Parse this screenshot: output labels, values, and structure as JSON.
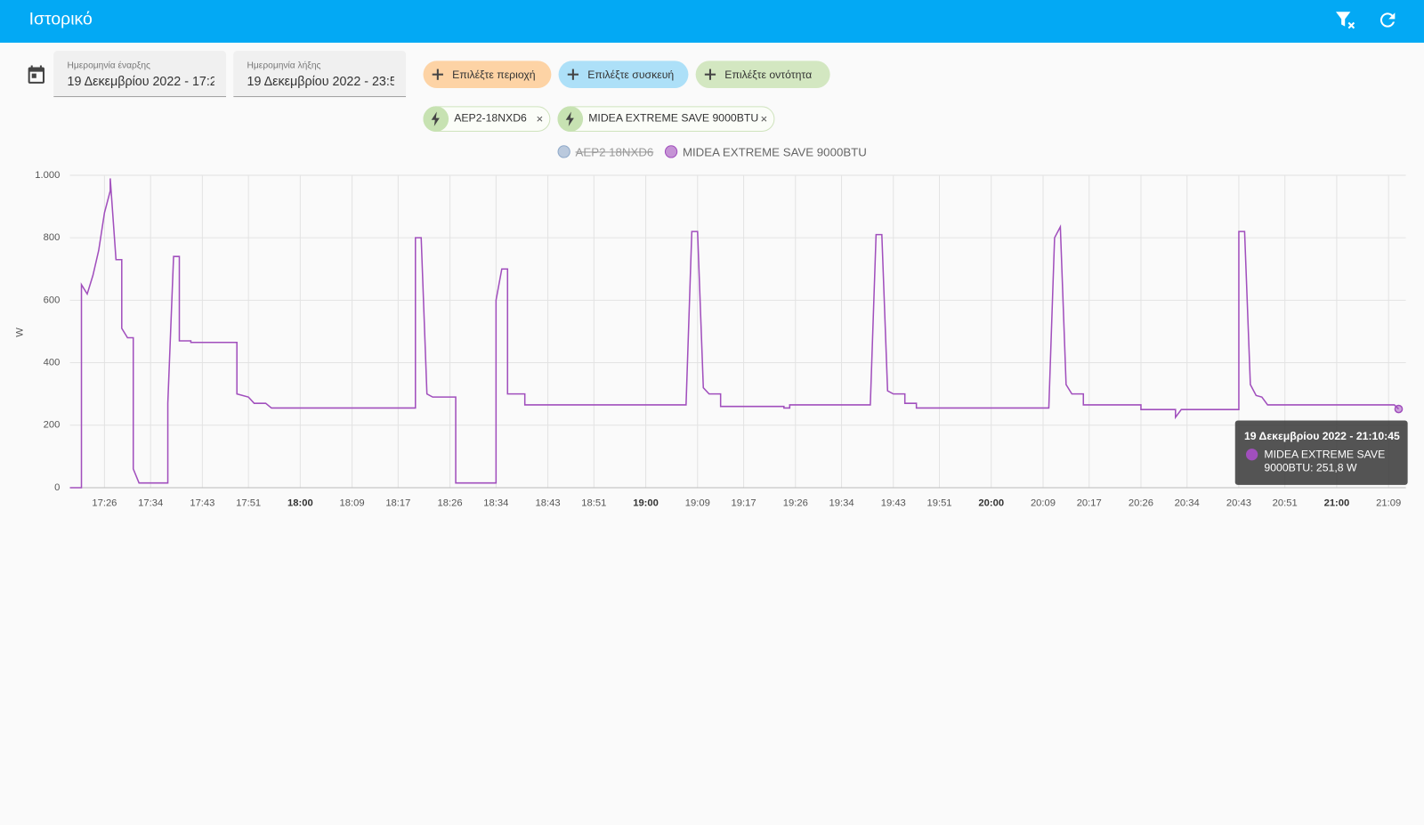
{
  "header": {
    "title": "Ιστορικό"
  },
  "filters": {
    "start": {
      "label": "Ημερομηνία έναρξης",
      "value": "19 Δεκεμβρίου 2022 - 17:2"
    },
    "end": {
      "label": "Ημερομηνία λήξης",
      "value": "19 Δεκεμβρίου 2022 - 23:5"
    },
    "buttons": [
      "Επιλέξτε περιοχή",
      "Επιλέξτε συσκευή",
      "Επιλέξτε οντότητα"
    ],
    "chips": [
      "AEP2-18NXD6",
      "MIDEA EXTREME SAVE 9000BTU"
    ]
  },
  "chart_data": {
    "type": "line",
    "y_label": "W",
    "ylim": [
      0,
      1000
    ],
    "yticks": [
      0,
      200,
      400,
      600,
      800,
      {
        "value": 1000,
        "label": "1.000"
      }
    ],
    "xlim": [
      "17:20",
      "21:12"
    ],
    "xticks": [
      "17:26",
      "17:34",
      "17:43",
      "17:51",
      "18:00",
      "18:09",
      "18:17",
      "18:26",
      "18:34",
      "18:43",
      "18:51",
      "19:00",
      "19:09",
      "19:17",
      "19:26",
      "19:34",
      "19:43",
      "19:51",
      "20:00",
      "20:09",
      "20:17",
      "20:26",
      "20:34",
      "20:43",
      "20:51",
      "21:00",
      "21:09"
    ],
    "grid": true,
    "x": [
      "17:20",
      "17:22",
      "17:22",
      "17:23",
      "17:24",
      "17:25",
      "17:26",
      "17:27",
      "17:27",
      "17:28",
      "17:29",
      "17:29",
      "17:30",
      "17:31",
      "17:31",
      "17:32",
      "17:37",
      "17:37",
      "17:38",
      "17:39",
      "17:39",
      "17:41",
      "17:41",
      "17:49",
      "17:49",
      "17:51",
      "17:52",
      "17:54",
      "17:55",
      "18:20",
      "18:20",
      "18:21",
      "18:22",
      "18:23",
      "18:27",
      "18:27",
      "18:34",
      "18:34",
      "18:35",
      "18:36",
      "18:36",
      "18:39",
      "18:39",
      "19:07",
      "19:08",
      "19:09",
      "19:10",
      "19:11",
      "19:13",
      "19:13",
      "19:24",
      "19:24",
      "19:25",
      "19:25",
      "19:39",
      "19:40",
      "19:41",
      "19:42",
      "19:43",
      "19:45",
      "19:45",
      "19:47",
      "19:47",
      "20:10",
      "20:11",
      "20:12",
      "20:13",
      "20:14",
      "20:16",
      "20:16",
      "20:26",
      "20:26",
      "20:32",
      "20:32",
      "20:33",
      "20:43",
      "20:43",
      "20:44",
      "20:45",
      "20:46",
      "20:47",
      "20:48",
      "21:10",
      "21:10:45"
    ],
    "series": [
      {
        "name": "AEP2 18NXD6",
        "color": "#8fa9c9",
        "hidden": true
      },
      {
        "name": "MIDEA EXTREME SAVE 9000BTU",
        "color": "#a14fbd",
        "values": [
          0,
          0,
          650,
          620,
          680,
          760,
          880,
          950,
          990,
          730,
          730,
          510,
          480,
          480,
          60,
          15,
          15,
          270,
          740,
          740,
          470,
          470,
          465,
          465,
          300,
          290,
          270,
          270,
          255,
          255,
          800,
          800,
          300,
          290,
          290,
          15,
          15,
          600,
          700,
          700,
          300,
          300,
          265,
          265,
          820,
          820,
          320,
          300,
          300,
          260,
          260,
          255,
          255,
          265,
          265,
          810,
          810,
          310,
          300,
          300,
          270,
          270,
          255,
          255,
          800,
          835,
          330,
          300,
          300,
          265,
          265,
          250,
          250,
          225,
          250,
          250,
          820,
          820,
          330,
          295,
          290,
          265,
          265,
          251.8
        ]
      }
    ],
    "tooltip": {
      "title": "19 Δεκεμβρίου 2022 - 21:10:45",
      "text": "MIDEA EXTREME SAVE 9000BTU: 251,8 W"
    }
  }
}
